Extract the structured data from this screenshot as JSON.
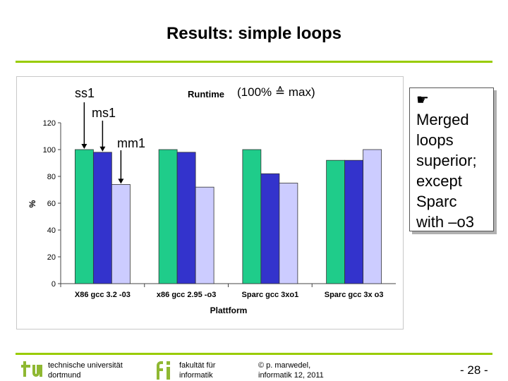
{
  "slide": {
    "title": "Results: simple loops",
    "page_number": "- 28 -"
  },
  "callout": {
    "icon": "pointing-hand-icon",
    "lines": [
      "Merged",
      "loops",
      "superior;",
      "except",
      "Sparc",
      "with –o3"
    ]
  },
  "annotations": {
    "ss1": "ss1",
    "ms1": "ms1",
    "mm1": "mm1",
    "subtitle": "(100% ≙ max)"
  },
  "footer": {
    "university_line1": "technische universität",
    "university_line2": "dortmund",
    "faculty_line1": "fakultät für",
    "faculty_line2": "informatik",
    "author_line1": "© p. marwedel,",
    "author_line2": "informatik 12,  2011"
  },
  "colors": {
    "ss1": "#1fcc8a",
    "ms1": "#3333cc",
    "mm1": "#ccccff",
    "accent_line": "#99cc00",
    "logo": "#8fb832"
  },
  "chart_data": {
    "type": "bar",
    "title": "Runtime",
    "xlabel": "Plattform",
    "ylabel": "%",
    "ylim": [
      0,
      120
    ],
    "yticks": [
      0,
      20,
      40,
      60,
      80,
      100,
      120
    ],
    "grid": false,
    "categories": [
      "X86 gcc 3.2 -03",
      "x86 gcc 2.95 -o3",
      "Sparc gcc 3xo1",
      "Sparc gcc 3x o3"
    ],
    "series": [
      {
        "name": "ss1",
        "values": [
          100,
          100,
          100,
          92
        ]
      },
      {
        "name": "ms1",
        "values": [
          98,
          98,
          82,
          92
        ]
      },
      {
        "name": "mm1",
        "values": [
          74,
          72,
          75,
          100
        ]
      }
    ]
  }
}
